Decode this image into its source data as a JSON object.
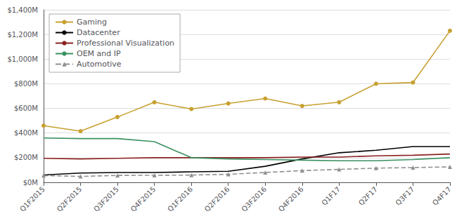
{
  "chart_data": {
    "type": "line",
    "categories": [
      "Q1F2015",
      "Q2F2015",
      "Q3F2015",
      "Q4F2015",
      "Q1F2016",
      "Q2F2016",
      "Q3F2016",
      "Q4F2016",
      "Q1F17",
      "Q2F17",
      "Q3F17",
      "Q4F17"
    ],
    "series": [
      {
        "name": "Gaming",
        "color": "#C8A030",
        "marker": "circle",
        "line_style": "solid",
        "values": [
          460,
          415,
          530,
          650,
          595,
          640,
          680,
          620,
          650,
          800,
          810,
          1230
        ]
      },
      {
        "name": "Datacenter",
        "color": "#000000",
        "line_style": "solid",
        "values": [
          60,
          75,
          80,
          80,
          85,
          90,
          130,
          190,
          240,
          260,
          290,
          290
        ]
      },
      {
        "name": "Professional Visualization",
        "color": "#8B2020",
        "line_style": "solid",
        "values": [
          195,
          190,
          195,
          200,
          200,
          200,
          200,
          205,
          205,
          215,
          220,
          230
        ]
      },
      {
        "name": "OEM and IP",
        "color": "#3A9060",
        "line_style": "solid",
        "values": [
          360,
          355,
          355,
          330,
          200,
          190,
          185,
          180,
          175,
          175,
          185,
          200
        ]
      },
      {
        "name": "Automotive",
        "color": "#909090",
        "marker": "triangle",
        "line_style": "dashed",
        "values": [
          55,
          48,
          56,
          57,
          59,
          65,
          80,
          95,
          105,
          115,
          120,
          125
        ]
      }
    ],
    "ylim": [
      0,
      1400
    ],
    "yticks": [
      {
        "value": 0,
        "label": "$0M"
      },
      {
        "value": 200,
        "label": "$200M"
      },
      {
        "value": 400,
        "label": "$400M"
      },
      {
        "value": 600,
        "label": "$600M"
      },
      {
        "value": 800,
        "label": "$800M"
      },
      {
        "value": 1000,
        "label": "$1,000M"
      },
      {
        "value": 1200,
        "label": "$1,200M"
      },
      {
        "value": 1400,
        "label": "$1,400M"
      }
    ],
    "grid": true,
    "legend": "upper left"
  }
}
